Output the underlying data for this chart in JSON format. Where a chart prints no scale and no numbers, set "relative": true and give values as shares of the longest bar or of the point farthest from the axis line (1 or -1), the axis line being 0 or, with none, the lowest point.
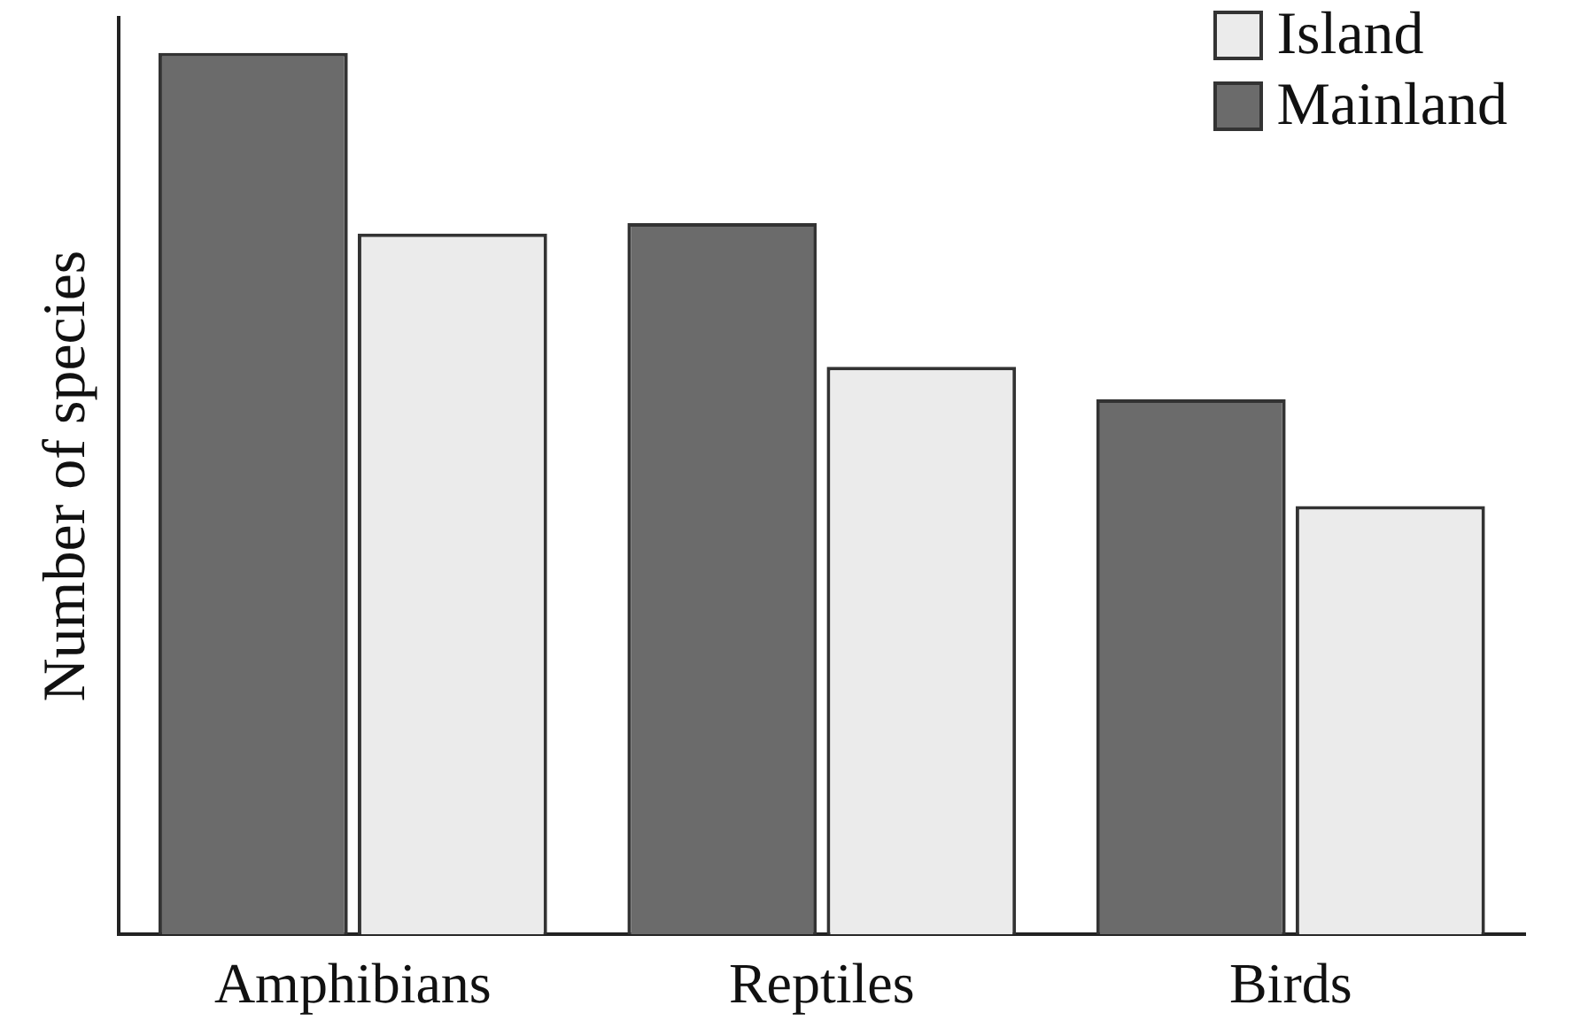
{
  "chart_data": {
    "type": "bar",
    "ylabel": "Number of species",
    "categories": [
      "Amphibians",
      "Reptiles",
      "Birds"
    ],
    "relative": true,
    "legend": "top right",
    "series": [
      {
        "name": "Mainland",
        "color": "#6b6b6b",
        "values": [
          1,
          0.807,
          0.607
        ]
      },
      {
        "name": "Island",
        "color": "#ebebeb",
        "values": [
          0.795,
          0.644,
          0.486
        ]
      }
    ]
  }
}
